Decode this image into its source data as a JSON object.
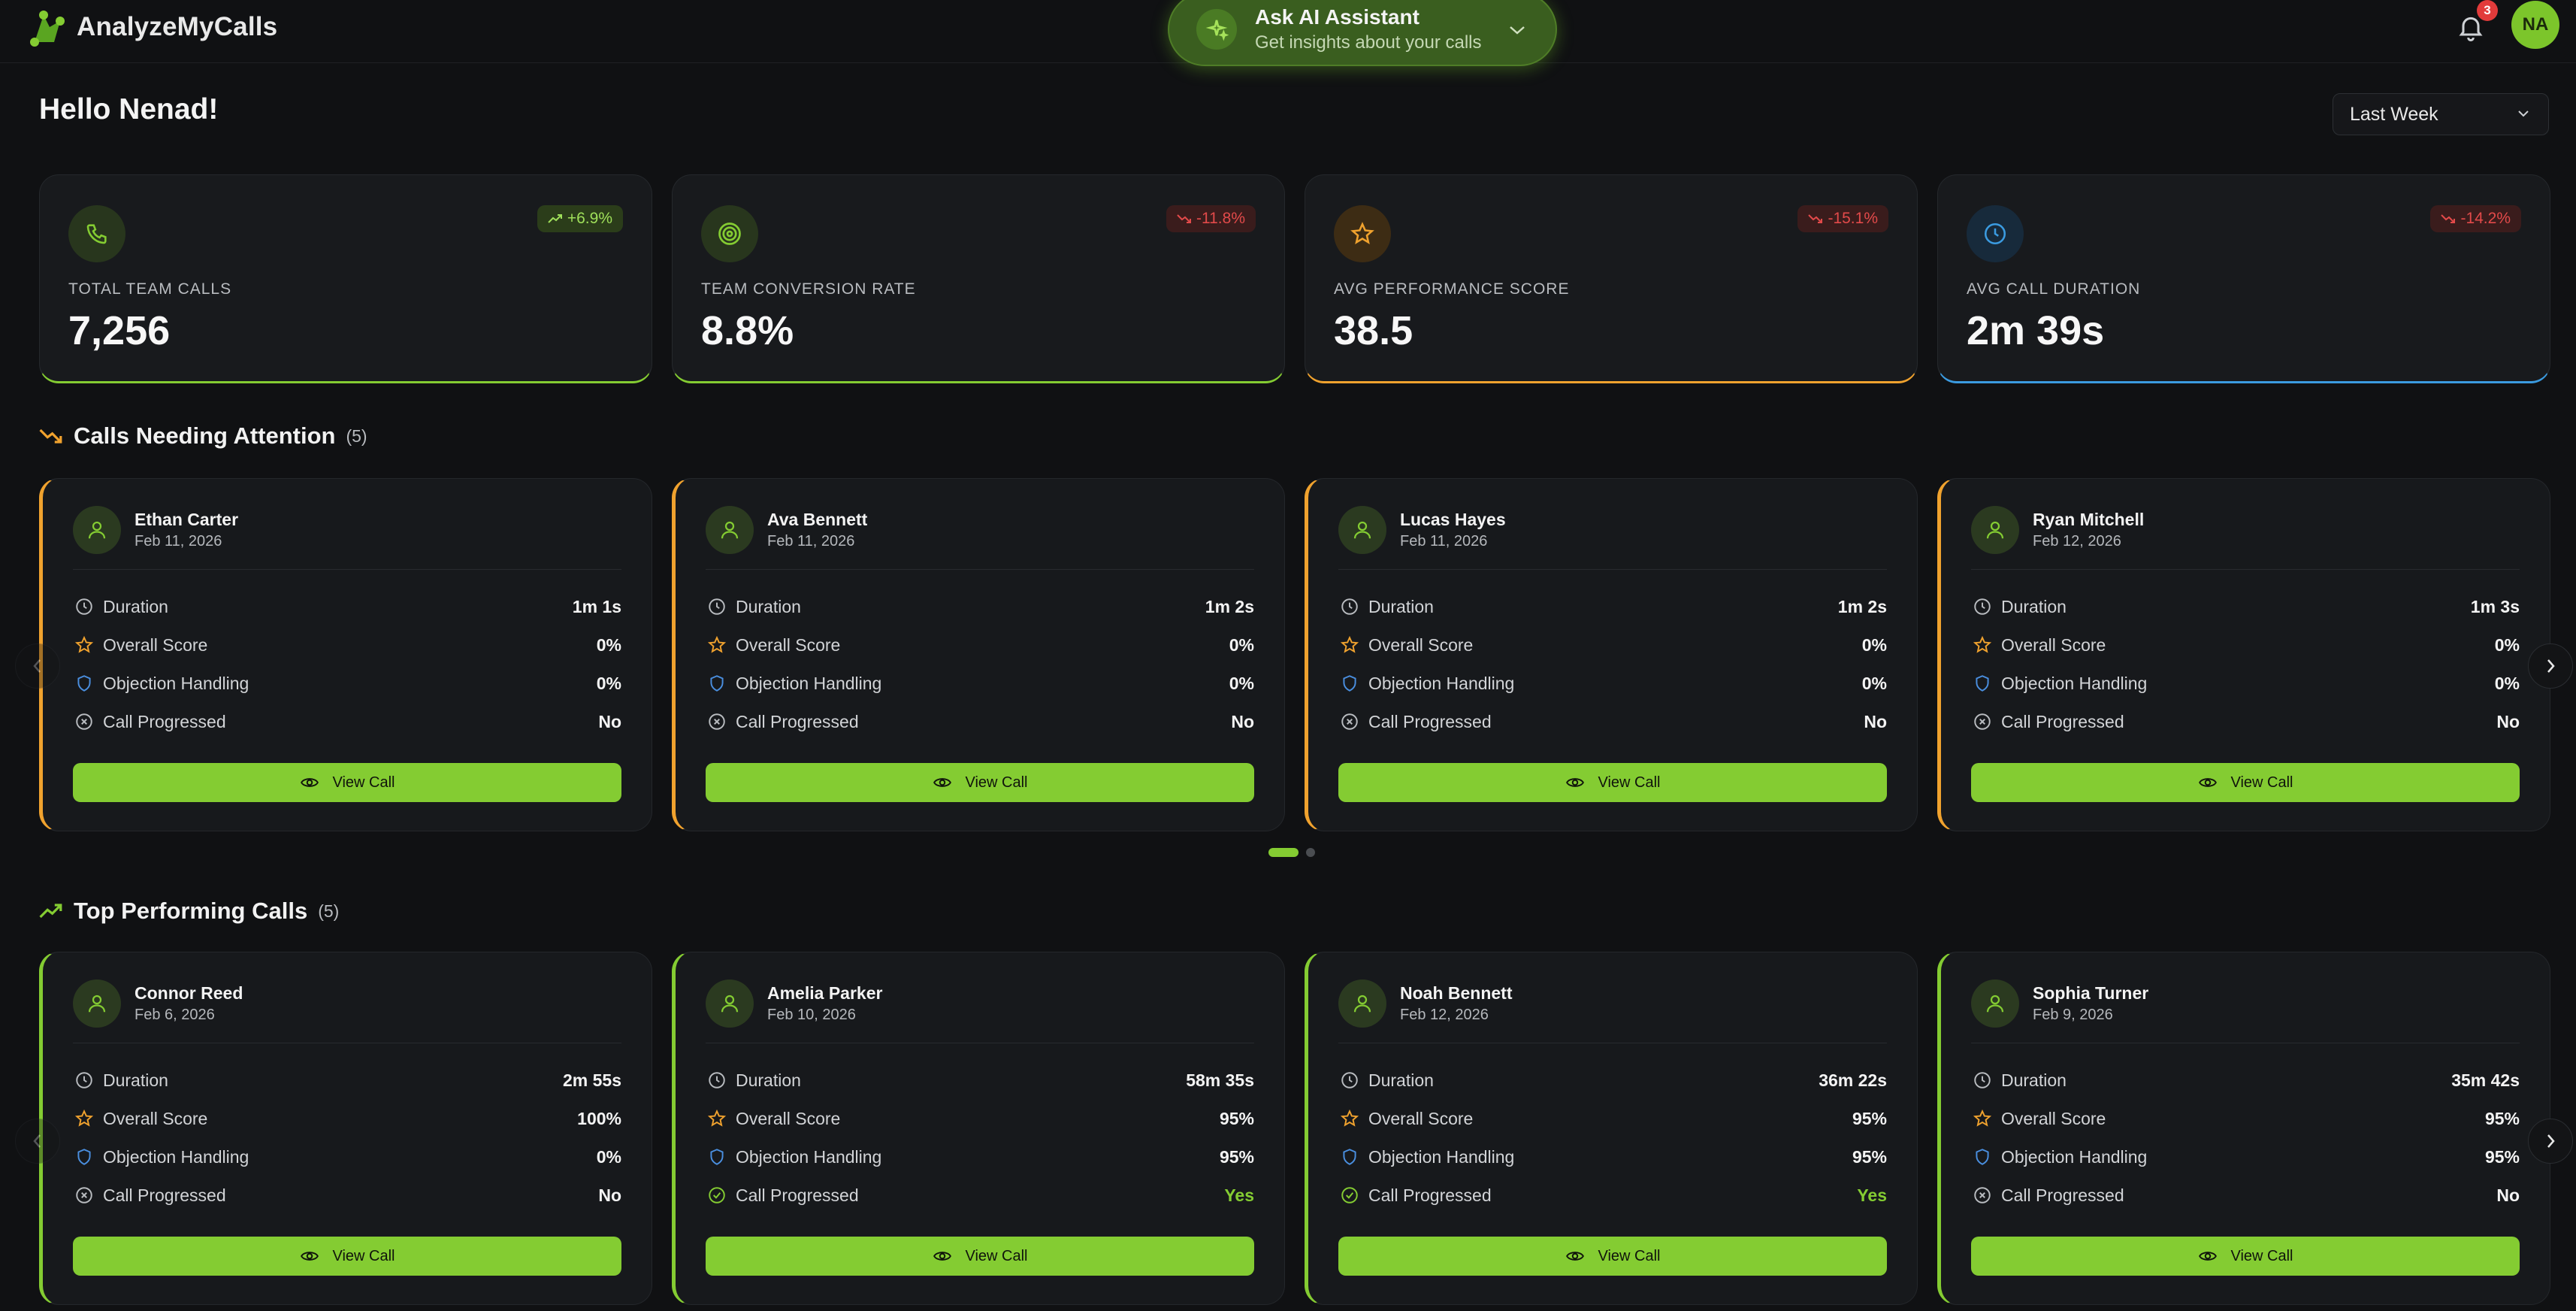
{
  "app": {
    "name": "AnalyzeMyCalls"
  },
  "assistant": {
    "title": "Ask AI Assistant",
    "subtitle": "Get insights about your calls"
  },
  "notifications": {
    "count": "3"
  },
  "user": {
    "initials": "NA"
  },
  "greeting": "Hello Nenad!",
  "date_range": {
    "selected": "Last Week"
  },
  "stats": [
    {
      "label": "TOTAL TEAM CALLS",
      "value": "7,256",
      "change": "+6.9%",
      "trend": "up",
      "accent": "#84cc32"
    },
    {
      "label": "TEAM CONVERSION RATE",
      "value": "8.8%",
      "change": "-11.8%",
      "trend": "down",
      "accent": "#84cc32"
    },
    {
      "label": "AVG PERFORMANCE SCORE",
      "value": "38.5",
      "change": "-15.1%",
      "trend": "down",
      "accent": "#f0a22e"
    },
    {
      "label": "AVG CALL DURATION",
      "value": "2m 39s",
      "change": "-14.2%",
      "trend": "down",
      "accent": "#3b9be0"
    }
  ],
  "row_labels": {
    "duration": "Duration",
    "score": "Overall Score",
    "objection": "Objection Handling",
    "progressed": "Call Progressed",
    "view": "View Call"
  },
  "attention": {
    "title": "Calls Needing Attention",
    "count": "(5)",
    "calls": [
      {
        "name": "Ethan Carter",
        "date": "Feb 11, 2026",
        "duration": "1m 1s",
        "score": "0%",
        "objection": "0%",
        "progressed": "No"
      },
      {
        "name": "Ava Bennett",
        "date": "Feb 11, 2026",
        "duration": "1m 2s",
        "score": "0%",
        "objection": "0%",
        "progressed": "No"
      },
      {
        "name": "Lucas Hayes",
        "date": "Feb 11, 2026",
        "duration": "1m 2s",
        "score": "0%",
        "objection": "0%",
        "progressed": "No"
      },
      {
        "name": "Ryan Mitchell",
        "date": "Feb 12, 2026",
        "duration": "1m 3s",
        "score": "0%",
        "objection": "0%",
        "progressed": "No"
      }
    ]
  },
  "top": {
    "title": "Top Performing Calls",
    "count": "(5)",
    "calls": [
      {
        "name": "Connor Reed",
        "date": "Feb 6, 2026",
        "duration": "2m 55s",
        "score": "100%",
        "objection": "0%",
        "progressed": "No"
      },
      {
        "name": "Amelia Parker",
        "date": "Feb 10, 2026",
        "duration": "58m 35s",
        "score": "95%",
        "objection": "95%",
        "progressed": "Yes"
      },
      {
        "name": "Noah Bennett",
        "date": "Feb 12, 2026",
        "duration": "36m 22s",
        "score": "95%",
        "objection": "95%",
        "progressed": "Yes"
      },
      {
        "name": "Sophia Turner",
        "date": "Feb 9, 2026",
        "duration": "35m 42s",
        "score": "95%",
        "objection": "95%",
        "progressed": "No"
      }
    ]
  },
  "colors": {
    "brand": "#84cc32",
    "attention_accent": "#f0a22e",
    "top_accent": "#84cc32",
    "yes": "#84cc32",
    "down": "#e24a4a"
  }
}
